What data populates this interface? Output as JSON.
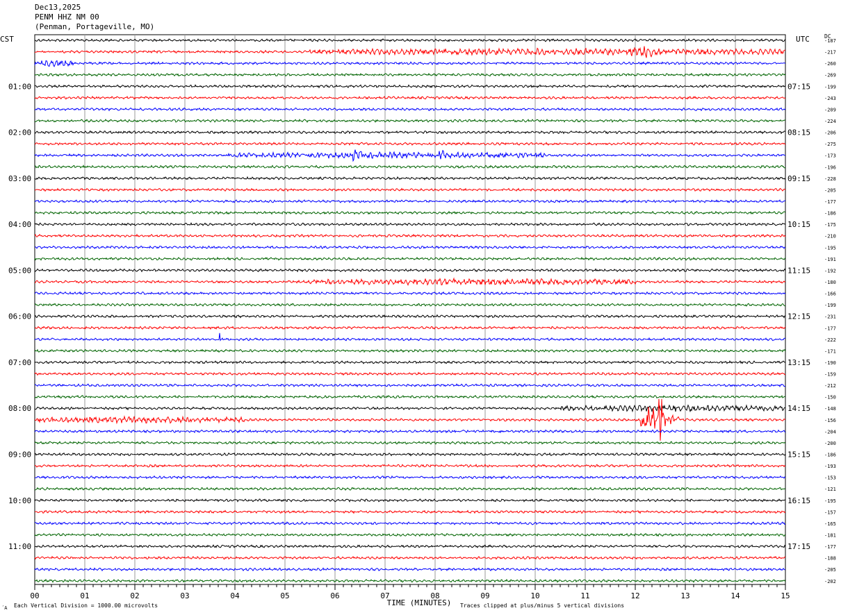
{
  "header": {
    "date": "Dec13,2025",
    "station": "PENM HHZ NM 00",
    "location": "(Penman, Portageville, MO)"
  },
  "left_timezone": "CST",
  "right_timezone": "UTC",
  "dc_label": "DC",
  "footer": {
    "scale_note": "Each Vertical Division = 1000.00 microvolts",
    "clip_note": "Traces clipped at plus/minus 5 vertical divisions",
    "mark": "´A"
  },
  "chart_data": {
    "type": "line",
    "title": "",
    "xlabel": "TIME (MINUTES)",
    "ylabel": "",
    "xlim": [
      0,
      15
    ],
    "x_ticks": [
      "00",
      "01",
      "02",
      "03",
      "04",
      "05",
      "06",
      "07",
      "08",
      "09",
      "10",
      "11",
      "12",
      "13",
      "14",
      "15"
    ],
    "trace_colors": [
      "#000000",
      "#ff0000",
      "#0000ff",
      "#006400"
    ],
    "left_hour_labels": [
      "01:00",
      "02:00",
      "03:00",
      "04:00",
      "05:00",
      "06:00",
      "07:00",
      "08:00",
      "09:00",
      "10:00",
      "11:00"
    ],
    "right_hour_labels": [
      "07:15",
      "08:15",
      "09:15",
      "10:15",
      "11:15",
      "12:15",
      "13:15",
      "14:15",
      "15:15",
      "16:15",
      "17:15"
    ],
    "dc_offsets": [
      -187,
      -217,
      -260,
      -269,
      -199,
      -243,
      -209,
      -224,
      -206,
      -275,
      -173,
      -196,
      -228,
      -205,
      -177,
      -186,
      -175,
      -210,
      -195,
      -191,
      -192,
      -180,
      -166,
      -199,
      -231,
      -177,
      -222,
      -171,
      -190,
      -159,
      -212,
      -150,
      -148,
      -156,
      -204,
      -200,
      -186,
      -193,
      -153,
      -121,
      -195,
      -157,
      -165,
      -181,
      -177,
      -188,
      -205,
      -202
    ],
    "activity": [
      {
        "trace": 1,
        "from_min": 5.5,
        "to_min": 15,
        "level": "elevated"
      },
      {
        "trace": 1,
        "from_min": 11.8,
        "to_min": 12.6,
        "level": "burst"
      },
      {
        "trace": 2,
        "from_min": 0,
        "to_min": 0.8,
        "level": "elevated"
      },
      {
        "trace": 10,
        "from_min": 3.8,
        "to_min": 10.2,
        "level": "elevated"
      },
      {
        "trace": 10,
        "from_min": 6.2,
        "to_min": 6.6,
        "level": "burst"
      },
      {
        "trace": 10,
        "from_min": 7.8,
        "to_min": 8.3,
        "level": "burst"
      },
      {
        "trace": 21,
        "from_min": 5.5,
        "to_min": 12,
        "level": "elevated"
      },
      {
        "trace": 26,
        "from_min": 3.68,
        "to_min": 3.72,
        "level": "spike"
      },
      {
        "trace": 32,
        "from_min": 10.5,
        "to_min": 15,
        "level": "elevated"
      },
      {
        "trace": 33,
        "from_min": 0,
        "to_min": 4.2,
        "level": "elevated"
      },
      {
        "trace": 33,
        "from_min": 12.1,
        "to_min": 12.9,
        "level": "event"
      }
    ]
  }
}
